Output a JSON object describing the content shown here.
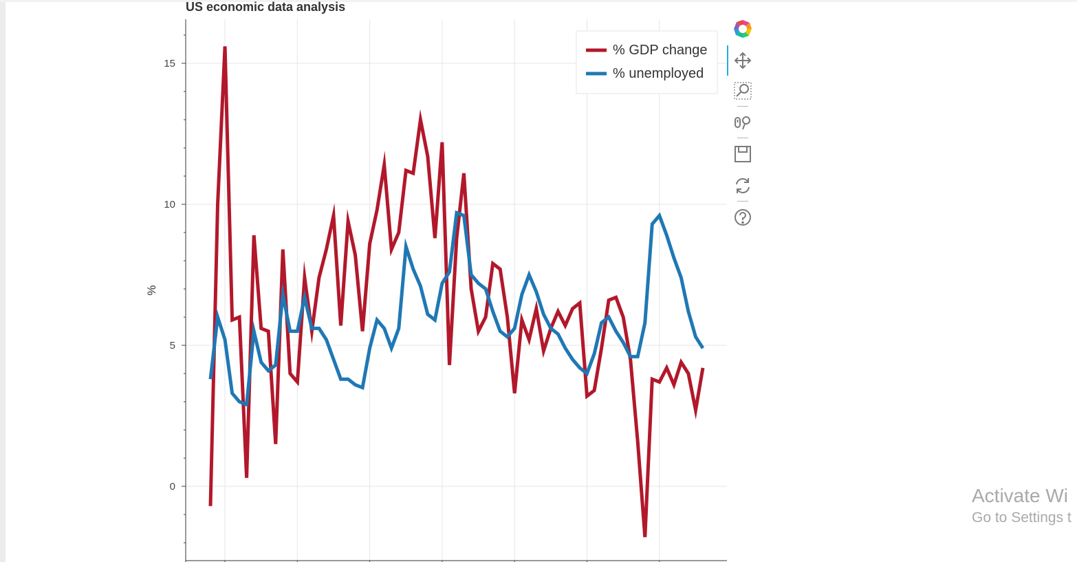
{
  "chart_data": {
    "type": "line",
    "title": "US economic data analysis",
    "xlabel": "",
    "ylabel": "%",
    "ylim": [
      -2.0,
      16.5
    ],
    "yticks": [
      0,
      5,
      10,
      15
    ],
    "x_tick_labels": [],
    "grid": true,
    "legend_position": "top-right",
    "series": [
      {
        "name": "% GDP change",
        "color": "#b2182b",
        "values": [
          -0.7,
          10.0,
          15.6,
          5.9,
          6.0,
          0.3,
          8.9,
          5.6,
          5.5,
          1.5,
          8.4,
          4.0,
          3.7,
          7.4,
          5.5,
          7.4,
          8.4,
          9.6,
          5.7,
          9.4,
          8.2,
          5.5,
          8.6,
          9.8,
          11.4,
          8.4,
          9.0,
          11.2,
          11.1,
          13.0,
          11.7,
          8.8,
          12.2,
          4.3,
          8.8,
          11.1,
          7.0,
          5.5,
          6.0,
          7.9,
          7.7,
          6.0,
          3.3,
          5.9,
          5.2,
          6.3,
          4.8,
          5.6,
          6.2,
          5.7,
          6.3,
          6.5,
          3.2,
          3.4,
          4.9,
          6.6,
          6.7,
          6.0,
          4.5,
          1.6,
          -1.8,
          3.8,
          3.7,
          4.2,
          3.6,
          4.4,
          4.0,
          2.7,
          4.2
        ]
      },
      {
        "name": "% unemployed",
        "color": "#1f78b4",
        "values": [
          3.8,
          6.0,
          5.2,
          3.3,
          3.0,
          2.9,
          5.5,
          4.4,
          4.1,
          4.3,
          6.8,
          5.5,
          5.5,
          6.7,
          5.6,
          5.6,
          5.2,
          4.5,
          3.8,
          3.8,
          3.6,
          3.5,
          4.9,
          5.9,
          5.6,
          4.9,
          5.6,
          8.5,
          7.7,
          7.1,
          6.1,
          5.9,
          7.2,
          7.6,
          9.7,
          9.6,
          7.5,
          7.2,
          7.0,
          6.2,
          5.5,
          5.3,
          5.6,
          6.8,
          7.5,
          6.9,
          6.1,
          5.6,
          5.4,
          4.9,
          4.5,
          4.2,
          4.0,
          4.7,
          5.8,
          6.0,
          5.5,
          5.1,
          4.6,
          4.6,
          5.8,
          9.3,
          9.6,
          8.9,
          8.1,
          7.4,
          6.2,
          5.3,
          4.9
        ]
      }
    ]
  },
  "toolbar": {
    "tools": [
      "bokeh-logo-icon",
      "pan-icon",
      "box-zoom-icon",
      "wheel-zoom-icon",
      "save-icon",
      "reset-icon",
      "help-icon"
    ]
  },
  "watermark": {
    "line1": "Activate Wi",
    "line2": "Go to Settings t"
  }
}
